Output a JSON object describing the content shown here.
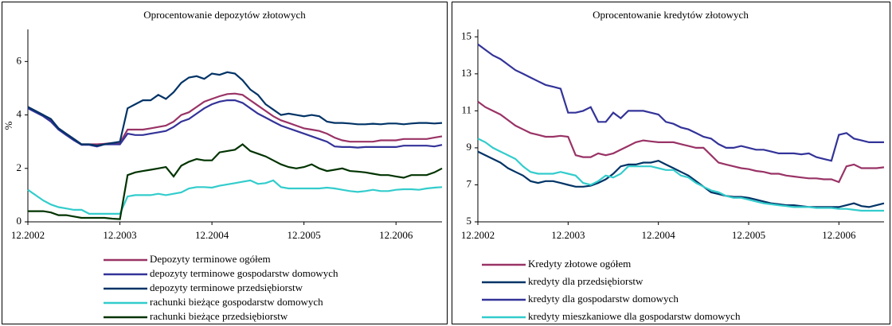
{
  "chart_data": [
    {
      "type": "line",
      "title": "Oprocentowanie depozytów złotowych",
      "y_label": "%",
      "legend": "below",
      "categories": [
        "12.2002",
        null,
        null,
        null,
        null,
        null,
        null,
        null,
        null,
        null,
        null,
        null,
        "12.2003",
        null,
        null,
        null,
        null,
        null,
        null,
        null,
        null,
        null,
        null,
        null,
        "12.2004",
        null,
        null,
        null,
        null,
        null,
        null,
        null,
        null,
        null,
        null,
        null,
        "12.2005",
        null,
        null,
        null,
        null,
        null,
        null,
        null,
        null,
        null,
        null,
        null,
        "12.2006",
        null,
        null,
        null,
        null,
        null,
        null
      ],
      "ylim": [
        0,
        7.2
      ],
      "yticks": [
        0,
        2,
        4,
        6
      ],
      "series": [
        {
          "name": "Depozyty terminowe ogółem",
          "color": "#993366",
          "values": [
            4.3,
            4.15,
            4.0,
            3.8,
            3.5,
            3.3,
            3.1,
            2.9,
            2.9,
            2.9,
            2.92,
            2.95,
            2.95,
            3.45,
            3.45,
            3.45,
            3.5,
            3.55,
            3.6,
            3.75,
            4.0,
            4.1,
            4.3,
            4.5,
            4.6,
            4.7,
            4.78,
            4.8,
            4.75,
            4.55,
            4.35,
            4.15,
            3.95,
            3.8,
            3.7,
            3.6,
            3.5,
            3.45,
            3.4,
            3.3,
            3.15,
            3.05,
            3.0,
            3.0,
            3.0,
            3.0,
            3.05,
            3.05,
            3.05,
            3.1,
            3.1,
            3.1,
            3.1,
            3.15,
            3.2
          ]
        },
        {
          "name": "depozyty terminowe gospodarstw domowych",
          "color": "#333399",
          "values": [
            4.25,
            4.1,
            3.95,
            3.75,
            3.45,
            3.25,
            3.05,
            2.88,
            2.88,
            2.82,
            2.9,
            2.9,
            2.9,
            3.3,
            3.25,
            3.25,
            3.3,
            3.35,
            3.4,
            3.55,
            3.75,
            3.85,
            4.05,
            4.25,
            4.4,
            4.5,
            4.55,
            4.55,
            4.45,
            4.25,
            4.05,
            3.9,
            3.75,
            3.6,
            3.5,
            3.4,
            3.3,
            3.2,
            3.1,
            3.0,
            2.82,
            2.8,
            2.8,
            2.78,
            2.8,
            2.8,
            2.8,
            2.8,
            2.8,
            2.85,
            2.85,
            2.85,
            2.85,
            2.82,
            2.88
          ]
        },
        {
          "name": "depozyty terminowe  przedsiębiorstw",
          "color": "#003366",
          "values": [
            4.3,
            4.15,
            4.0,
            3.85,
            3.5,
            3.3,
            3.1,
            2.9,
            2.9,
            2.85,
            2.9,
            2.95,
            3.0,
            4.25,
            4.4,
            4.55,
            4.55,
            4.75,
            4.6,
            4.85,
            5.2,
            5.4,
            5.45,
            5.35,
            5.55,
            5.5,
            5.6,
            5.55,
            5.3,
            4.95,
            4.75,
            4.4,
            4.2,
            4.0,
            4.05,
            4.0,
            3.95,
            4.0,
            3.95,
            3.75,
            3.7,
            3.7,
            3.68,
            3.65,
            3.65,
            3.67,
            3.65,
            3.68,
            3.68,
            3.65,
            3.68,
            3.7,
            3.7,
            3.68,
            3.7
          ]
        },
        {
          "name": "rachunki bieżące gospodarstw domowych",
          "color": "#33CCCC",
          "values": [
            1.2,
            1.0,
            0.8,
            0.65,
            0.55,
            0.5,
            0.45,
            0.45,
            0.3,
            0.3,
            0.3,
            0.3,
            0.3,
            0.95,
            1.0,
            1.0,
            1.0,
            1.05,
            1.0,
            1.05,
            1.1,
            1.25,
            1.3,
            1.3,
            1.28,
            1.35,
            1.4,
            1.45,
            1.5,
            1.55,
            1.42,
            1.45,
            1.55,
            1.3,
            1.25,
            1.25,
            1.25,
            1.25,
            1.25,
            1.28,
            1.25,
            1.2,
            1.15,
            1.12,
            1.15,
            1.2,
            1.15,
            1.15,
            1.2,
            1.22,
            1.22,
            1.2,
            1.25,
            1.28,
            1.3
          ]
        },
        {
          "name": "rachunki bieżące przedsiębiorstw",
          "color": "#003300",
          "values": [
            0.4,
            0.4,
            0.4,
            0.35,
            0.25,
            0.25,
            0.2,
            0.15,
            0.15,
            0.15,
            0.15,
            0.12,
            0.1,
            1.75,
            1.85,
            1.9,
            1.95,
            2.0,
            2.05,
            1.7,
            2.1,
            2.25,
            2.35,
            2.3,
            2.3,
            2.6,
            2.65,
            2.7,
            2.9,
            2.65,
            2.55,
            2.45,
            2.3,
            2.15,
            2.05,
            2.0,
            2.05,
            2.15,
            2.0,
            1.9,
            1.95,
            2.0,
            1.9,
            1.88,
            1.85,
            1.8,
            1.75,
            1.75,
            1.7,
            1.65,
            1.75,
            1.75,
            1.75,
            1.85,
            2.0
          ]
        }
      ]
    },
    {
      "type": "line",
      "title": "Oprocentowanie  kredytów  złotowych",
      "legend": "below",
      "categories": [
        "12.2002",
        null,
        null,
        null,
        null,
        null,
        null,
        null,
        null,
        null,
        null,
        null,
        "12.2003",
        null,
        null,
        null,
        null,
        null,
        null,
        null,
        null,
        null,
        null,
        null,
        "12.2004",
        null,
        null,
        null,
        null,
        null,
        null,
        null,
        null,
        null,
        null,
        null,
        "12.2005",
        null,
        null,
        null,
        null,
        null,
        null,
        null,
        null,
        null,
        null,
        null,
        "12.2006",
        null,
        null,
        null,
        null,
        null,
        null
      ],
      "ylim": [
        5,
        15.4
      ],
      "yticks": [
        5,
        7,
        9,
        11,
        13,
        15
      ],
      "series": [
        {
          "name": "Kredyty złotowe ogółem",
          "color": "#993366",
          "values": [
            11.5,
            11.2,
            11.0,
            10.8,
            10.5,
            10.2,
            10.0,
            9.8,
            9.7,
            9.6,
            9.6,
            9.65,
            9.6,
            8.6,
            8.5,
            8.5,
            8.7,
            8.6,
            8.7,
            8.9,
            9.1,
            9.3,
            9.4,
            9.35,
            9.3,
            9.3,
            9.3,
            9.2,
            9.1,
            9.0,
            9.0,
            8.6,
            8.2,
            8.1,
            8.0,
            7.9,
            7.85,
            7.75,
            7.7,
            7.6,
            7.6,
            7.5,
            7.45,
            7.4,
            7.35,
            7.35,
            7.3,
            7.3,
            7.15,
            8.0,
            8.1,
            7.9,
            7.9,
            7.9,
            7.95
          ]
        },
        {
          "name": "kredyty dla przedsiębiorstw",
          "color": "#003366",
          "values": [
            8.8,
            8.6,
            8.4,
            8.2,
            7.9,
            7.7,
            7.5,
            7.2,
            7.1,
            7.2,
            7.2,
            7.1,
            7.0,
            6.9,
            6.9,
            6.95,
            7.1,
            7.3,
            7.6,
            8.0,
            8.1,
            8.1,
            8.2,
            8.2,
            8.3,
            8.1,
            7.9,
            7.7,
            7.5,
            7.2,
            6.9,
            6.6,
            6.5,
            6.4,
            6.35,
            6.35,
            6.3,
            6.2,
            6.1,
            6.0,
            5.95,
            5.9,
            5.9,
            5.85,
            5.8,
            5.8,
            5.8,
            5.8,
            5.8,
            5.9,
            6.0,
            5.85,
            5.8,
            5.9,
            6.0
          ]
        },
        {
          "name": "kredyty dla gospodarstw  domowych",
          "color": "#333399",
          "values": [
            14.6,
            14.3,
            14.0,
            13.8,
            13.5,
            13.2,
            13.0,
            12.8,
            12.6,
            12.4,
            12.3,
            12.2,
            10.9,
            10.9,
            11.0,
            11.2,
            10.4,
            10.4,
            10.9,
            10.6,
            11.0,
            11.0,
            11.0,
            10.9,
            10.8,
            10.4,
            10.3,
            10.1,
            10.0,
            9.8,
            9.6,
            9.5,
            9.2,
            9.0,
            9.0,
            9.1,
            9.0,
            8.9,
            8.9,
            8.8,
            8.7,
            8.7,
            8.7,
            8.65,
            8.7,
            8.5,
            8.4,
            8.3,
            9.7,
            9.8,
            9.5,
            9.4,
            9.3,
            9.3,
            9.3
          ]
        },
        {
          "name": "kredyty  mieszkaniowe dla gospodarstw  domowych",
          "color": "#33CCCC",
          "values": [
            9.5,
            9.3,
            9.0,
            8.8,
            8.6,
            8.4,
            8.0,
            7.7,
            7.6,
            7.6,
            7.6,
            7.7,
            7.6,
            7.5,
            7.1,
            7.0,
            7.2,
            7.5,
            7.4,
            7.6,
            8.0,
            8.0,
            8.0,
            8.0,
            7.9,
            7.8,
            7.8,
            7.5,
            7.4,
            7.1,
            6.9,
            6.7,
            6.6,
            6.4,
            6.3,
            6.3,
            6.2,
            6.1,
            6.0,
            5.95,
            5.9,
            5.85,
            5.8,
            5.8,
            5.8,
            5.75,
            5.75,
            5.75,
            5.7,
            5.7,
            5.65,
            5.6,
            5.6,
            5.6,
            5.6
          ]
        }
      ]
    }
  ]
}
